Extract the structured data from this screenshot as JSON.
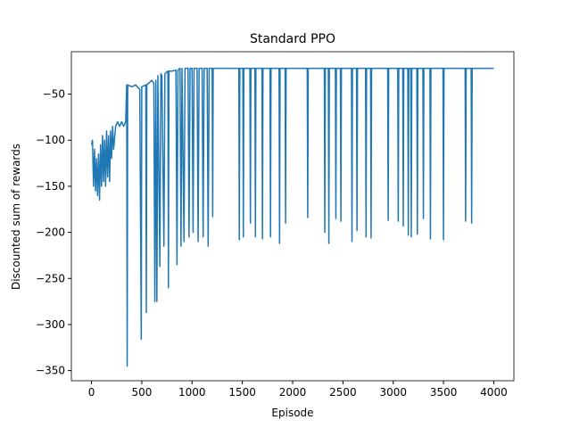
{
  "chart_data": {
    "type": "line",
    "title": "Standard PPO",
    "x_label": "Episode",
    "y_label": "Discounted sum of rewards",
    "xlim": [
      -200,
      4200
    ],
    "ylim": [
      -361,
      -4
    ],
    "xticks": [
      0,
      500,
      1000,
      1500,
      2000,
      2500,
      3000,
      3500,
      4000
    ],
    "yticks": [
      {
        "value": -350,
        "label": "−350"
      },
      {
        "value": -300,
        "label": "−300"
      },
      {
        "value": -250,
        "label": "−250"
      },
      {
        "value": -200,
        "label": "−200"
      },
      {
        "value": -150,
        "label": "−150"
      },
      {
        "value": -100,
        "label": "−100"
      },
      {
        "value": -50,
        "label": "−50"
      }
    ],
    "series": [
      {
        "name": "Standard PPO",
        "color": "#1f77b4",
        "x": [
          0,
          10,
          20,
          30,
          40,
          50,
          60,
          70,
          80,
          90,
          100,
          110,
          120,
          130,
          140,
          150,
          160,
          170,
          180,
          190,
          200,
          210,
          220,
          240,
          260,
          280,
          300,
          320,
          340,
          350,
          355,
          360,
          400,
          440,
          480,
          495,
          500,
          540,
          545,
          550,
          600,
          620,
          630,
          640,
          650,
          660,
          680,
          690,
          700,
          720,
          730,
          760,
          765,
          770,
          800,
          840,
          850,
          860,
          880,
          890,
          900,
          920,
          930,
          960,
          970,
          980,
          1000,
          1010,
          1020,
          1050,
          1060,
          1070,
          1100,
          1110,
          1120,
          1150,
          1160,
          1170,
          1200,
          1205,
          1210,
          1250,
          1465,
          1470,
          1475,
          1505,
          1510,
          1515,
          1575,
          1580,
          1585,
          1625,
          1630,
          1635,
          1695,
          1700,
          1705,
          1775,
          1780,
          1785,
          1865,
          1870,
          1875,
          1925,
          1930,
          1935,
          2145,
          2150,
          2155,
          2315,
          2320,
          2325,
          2355,
          2360,
          2365,
          2425,
          2430,
          2435,
          2475,
          2480,
          2485,
          2585,
          2590,
          2595,
          2635,
          2640,
          2645,
          2725,
          2730,
          2735,
          2775,
          2780,
          2785,
          2945,
          2950,
          2955,
          3045,
          3050,
          3055,
          3095,
          3100,
          3105,
          3145,
          3150,
          3155,
          3175,
          3180,
          3185,
          3235,
          3240,
          3245,
          3295,
          3300,
          3305,
          3365,
          3370,
          3375,
          3495,
          3500,
          3505,
          3715,
          3720,
          3725,
          3775,
          3780,
          3785,
          4000
        ],
        "values": [
          -105,
          -100,
          -150,
          -110,
          -155,
          -120,
          -160,
          -115,
          -165,
          -105,
          -150,
          -95,
          -145,
          -100,
          -150,
          -90,
          -140,
          -95,
          -145,
          -90,
          -120,
          -85,
          -110,
          -85,
          -80,
          -85,
          -80,
          -85,
          -80,
          -40,
          -345,
          -40,
          -42,
          -40,
          -45,
          -316,
          -42,
          -40,
          -287,
          -40,
          -35,
          -38,
          -275,
          -35,
          -275,
          -30,
          -237,
          -28,
          -30,
          -215,
          -28,
          -25,
          -260,
          -25,
          -25,
          -24,
          -235,
          -24,
          -22,
          -215,
          -22,
          -210,
          -22,
          -22,
          -205,
          -22,
          -22,
          -200,
          -22,
          -22,
          -210,
          -22,
          -22,
          -205,
          -22,
          -22,
          -215,
          -22,
          -22,
          -183,
          -22,
          -22,
          -22,
          -208,
          -22,
          -22,
          -205,
          -22,
          -22,
          -190,
          -22,
          -22,
          -205,
          -22,
          -22,
          -207,
          -22,
          -22,
          -205,
          -22,
          -22,
          -212,
          -22,
          -22,
          -190,
          -22,
          -22,
          -184,
          -22,
          -22,
          -200,
          -22,
          -22,
          -212,
          -22,
          -22,
          -185,
          -22,
          -22,
          -188,
          -22,
          -22,
          -210,
          -22,
          -22,
          -198,
          -22,
          -22,
          -205,
          -22,
          -22,
          -206,
          -22,
          -22,
          -187,
          -22,
          -22,
          -188,
          -22,
          -22,
          -193,
          -22,
          -22,
          -203,
          -22,
          -22,
          -205,
          -22,
          -22,
          -202,
          -22,
          -22,
          -185,
          -22,
          -22,
          -207,
          -22,
          -22,
          -208,
          -22,
          -22,
          -188,
          -22,
          -22,
          -190,
          -22,
          -22
        ]
      }
    ]
  }
}
